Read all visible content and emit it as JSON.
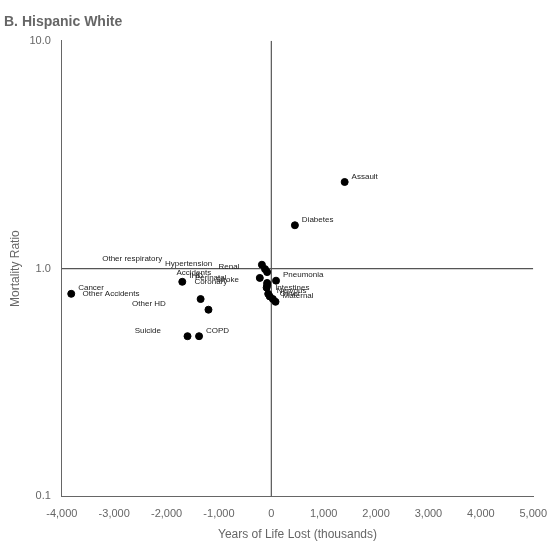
{
  "chart_data": {
    "type": "scatter",
    "title": "B. Hispanic White",
    "xlabel": "Years of Life Lost (thousands)",
    "ylabel": "Mortality Ratio",
    "x": [
      1400,
      450,
      -180,
      -120,
      -80,
      -220,
      90,
      -80,
      -80,
      -90,
      -60,
      -30,
      30,
      80,
      -1700,
      -1350,
      -1200,
      -1600,
      -1380,
      -3820
    ],
    "values": [
      2.4,
      1.55,
      1.04,
      0.995,
      0.965,
      0.91,
      0.885,
      0.865,
      0.845,
      0.825,
      0.775,
      0.755,
      0.735,
      0.715,
      0.875,
      0.735,
      0.66,
      0.505,
      0.505,
      0.775
    ],
    "labels": [
      "Assault",
      "Diabetes",
      "Other respiratory",
      "Hypertension",
      "Renal",
      "Accidents",
      "Pneumonia",
      "Perinatal",
      "Stroke",
      "Coronary",
      "Intestines",
      "Nervous",
      "Other",
      "Maternal",
      "IHD",
      "Other Accidents",
      "Other HD",
      "Suicide",
      "COPD",
      "Cancer"
    ],
    "color": "#000000",
    "log": "y",
    "grid": false,
    "xlim": [
      -4000,
      5000
    ],
    "ylim": [
      0.1,
      10.0
    ],
    "xticks": [
      {
        "value": -4000,
        "label": "-4,000"
      },
      {
        "value": -3000,
        "label": "-3,000"
      },
      {
        "value": -2000,
        "label": "-2,000"
      },
      {
        "value": -1000,
        "label": "-1,000"
      },
      0,
      {
        "value": 1000,
        "label": "1,000"
      },
      {
        "value": 2000,
        "label": "2,000"
      },
      {
        "value": 3000,
        "label": "3,000"
      },
      {
        "value": 4000,
        "label": "4,000"
      },
      {
        "value": 5000,
        "label": "5,000"
      }
    ],
    "yticks": [
      0.1,
      {
        "value": 1.0,
        "label": "1.0"
      },
      {
        "value": 10.0,
        "label": "10.0"
      }
    ],
    "reference_lines": {
      "x": 0,
      "y": 1.0
    }
  }
}
